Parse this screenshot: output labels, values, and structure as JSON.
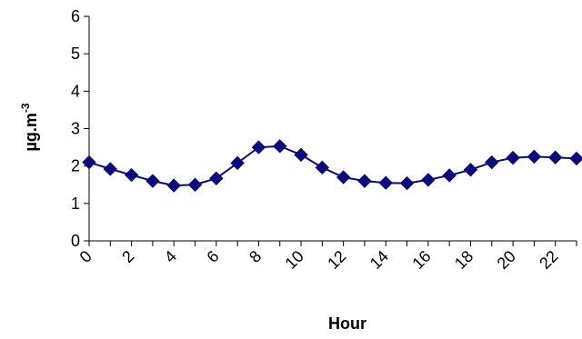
{
  "chart_data": {
    "type": "line",
    "title": "",
    "xlabel": "Hour",
    "ylabel_base": "µg.m",
    "ylabel_sup": "-3",
    "ylim": [
      0,
      6
    ],
    "yticks": [
      0,
      1,
      2,
      3,
      4,
      5,
      6
    ],
    "xlim": [
      0,
      23
    ],
    "xtick_labels": [
      0,
      2,
      4,
      6,
      8,
      10,
      12,
      14,
      16,
      18,
      20,
      22
    ],
    "grid": false,
    "legend": "none",
    "series": [
      {
        "color": "#0a0a7a",
        "marker": "diamond",
        "x": [
          0,
          1,
          2,
          3,
          4,
          5,
          6,
          7,
          8,
          9,
          10,
          11,
          12,
          13,
          14,
          15,
          16,
          17,
          18,
          19,
          20,
          21,
          22,
          23
        ],
        "y": [
          2.1,
          1.92,
          1.76,
          1.6,
          1.48,
          1.5,
          1.67,
          2.08,
          2.5,
          2.53,
          2.3,
          1.96,
          1.7,
          1.6,
          1.55,
          1.54,
          1.63,
          1.75,
          1.9,
          2.1,
          2.22,
          2.25,
          2.23,
          2.2
        ]
      }
    ]
  }
}
